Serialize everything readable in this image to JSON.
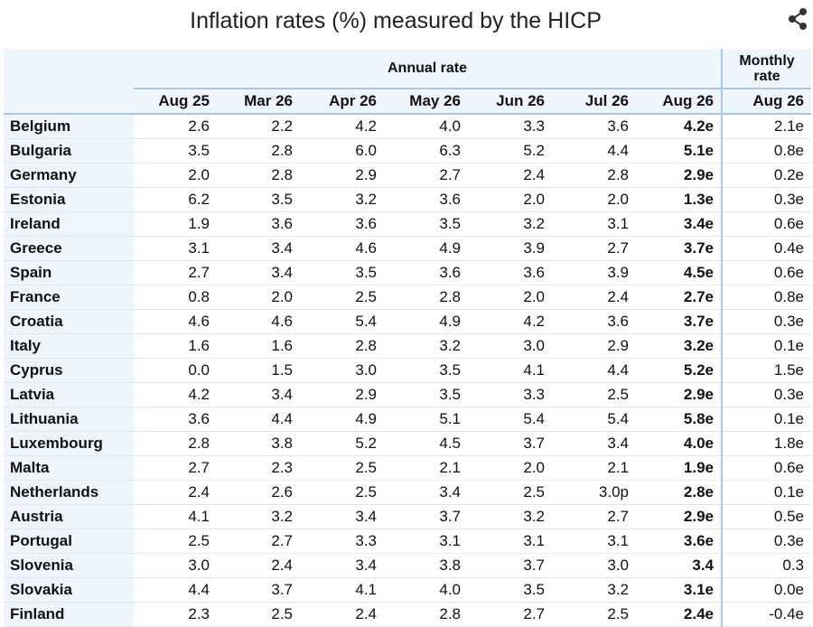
{
  "title": "Inflation rates (%) measured by the HICP",
  "share_icon": "share-icon",
  "header": {
    "annual_label": "Annual rate",
    "monthly_label_line1": "Monthly",
    "monthly_label_line2": "rate",
    "periods": [
      "Aug 25",
      "Mar 26",
      "Apr 26",
      "May 26",
      "Jun 26",
      "Jul 26",
      "Aug 26"
    ],
    "monthly_period": "Aug 26"
  },
  "rows": [
    {
      "country": "Belgium",
      "values": [
        "2.6",
        "2.2",
        "4.2",
        "4.0",
        "3.3",
        "3.6",
        "4.2e"
      ],
      "monthly": "2.1e"
    },
    {
      "country": "Bulgaria",
      "values": [
        "3.5",
        "2.8",
        "6.0",
        "6.3",
        "5.2",
        "4.4",
        "5.1e"
      ],
      "monthly": "0.8e"
    },
    {
      "country": "Germany",
      "values": [
        "2.0",
        "2.8",
        "2.9",
        "2.7",
        "2.4",
        "2.8",
        "2.9e"
      ],
      "monthly": "0.2e"
    },
    {
      "country": "Estonia",
      "values": [
        "6.2",
        "3.5",
        "3.2",
        "3.6",
        "2.0",
        "2.0",
        "1.3e"
      ],
      "monthly": "0.3e"
    },
    {
      "country": "Ireland",
      "values": [
        "1.9",
        "3.6",
        "3.6",
        "3.5",
        "3.2",
        "3.1",
        "3.4e"
      ],
      "monthly": "0.6e"
    },
    {
      "country": "Greece",
      "values": [
        "3.1",
        "3.4",
        "4.6",
        "4.9",
        "3.9",
        "2.7",
        "3.7e"
      ],
      "monthly": "0.4e"
    },
    {
      "country": "Spain",
      "values": [
        "2.7",
        "3.4",
        "3.5",
        "3.6",
        "3.6",
        "3.9",
        "4.5e"
      ],
      "monthly": "0.6e"
    },
    {
      "country": "France",
      "values": [
        "0.8",
        "2.0",
        "2.5",
        "2.8",
        "2.0",
        "2.4",
        "2.7e"
      ],
      "monthly": "0.8e"
    },
    {
      "country": "Croatia",
      "values": [
        "4.6",
        "4.6",
        "5.4",
        "4.9",
        "4.2",
        "3.6",
        "3.7e"
      ],
      "monthly": "0.3e"
    },
    {
      "country": "Italy",
      "values": [
        "1.6",
        "1.6",
        "2.8",
        "3.2",
        "3.0",
        "2.9",
        "3.2e"
      ],
      "monthly": "0.1e"
    },
    {
      "country": "Cyprus",
      "values": [
        "0.0",
        "1.5",
        "3.0",
        "3.5",
        "4.1",
        "4.4",
        "5.2e"
      ],
      "monthly": "1.5e"
    },
    {
      "country": "Latvia",
      "values": [
        "4.2",
        "3.4",
        "2.9",
        "3.5",
        "3.3",
        "2.5",
        "2.9e"
      ],
      "monthly": "0.3e"
    },
    {
      "country": "Lithuania",
      "values": [
        "3.6",
        "4.4",
        "4.9",
        "5.1",
        "5.4",
        "5.4",
        "5.8e"
      ],
      "monthly": "0.1e"
    },
    {
      "country": "Luxembourg",
      "values": [
        "2.8",
        "3.8",
        "5.2",
        "4.5",
        "3.7",
        "3.4",
        "4.0e"
      ],
      "monthly": "1.8e"
    },
    {
      "country": "Malta",
      "values": [
        "2.7",
        "2.3",
        "2.5",
        "2.1",
        "2.0",
        "2.1",
        "1.9e"
      ],
      "monthly": "0.6e"
    },
    {
      "country": "Netherlands",
      "values": [
        "2.4",
        "2.6",
        "2.5",
        "3.4",
        "2.5",
        "3.0p",
        "2.8e"
      ],
      "monthly": "0.1e"
    },
    {
      "country": "Austria",
      "values": [
        "4.1",
        "3.2",
        "3.4",
        "3.7",
        "3.2",
        "2.7",
        "2.9e"
      ],
      "monthly": "0.5e"
    },
    {
      "country": "Portugal",
      "values": [
        "2.5",
        "2.7",
        "3.3",
        "3.1",
        "3.1",
        "3.1",
        "3.6e"
      ],
      "monthly": "0.3e"
    },
    {
      "country": "Slovenia",
      "values": [
        "3.0",
        "2.4",
        "3.4",
        "3.8",
        "3.7",
        "3.0",
        "3.4"
      ],
      "monthly": "0.3"
    },
    {
      "country": "Slovakia",
      "values": [
        "4.4",
        "3.7",
        "4.1",
        "4.0",
        "3.5",
        "3.2",
        "3.1e"
      ],
      "monthly": "0.0e"
    },
    {
      "country": "Finland",
      "values": [
        "2.3",
        "2.5",
        "2.4",
        "2.8",
        "2.7",
        "2.5",
        "2.4e"
      ],
      "monthly": "-0.4e"
    }
  ]
}
